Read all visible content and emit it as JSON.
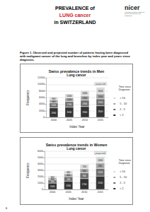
{
  "header": {
    "line1": "PREVALENCE of",
    "line2": "LUNG cancer",
    "line3": "in SWITZERLAND"
  },
  "logo": {
    "name": "nicer",
    "subtitle": "Foundation National Institute for Cancer Epidemiology and Registration"
  },
  "caption": "Figure 1. Observed and projected number of patients having been diagnosed with malignant cancer of the lung and bronchus by index year and years since diagnosis.",
  "page_number": "6",
  "chart_data": [
    {
      "type": "bar",
      "title": "Swiss prevalence trends in Men",
      "subtitle": "Lung cancer",
      "x_label": "Index Year",
      "y_label": "Frequency",
      "legend_title": "Time since Diagnosis",
      "categories": [
        "2000",
        "2005",
        "2010",
        "2015"
      ],
      "series": [
        {
          "name": "< 2",
          "color": "#333333",
          "values": [
            2900,
            3100,
            3300,
            3500
          ]
        },
        {
          "name": "2 - 5",
          "color": "#6f6f6f",
          "values": [
            1500,
            1700,
            1900,
            2100
          ]
        },
        {
          "name": "5 - 10",
          "color": "#a6a6a6",
          "values": [
            900,
            1100,
            1300,
            1500
          ]
        },
        {
          "name": "> 10",
          "color": "#d9d9d9",
          "values": [
            900,
            1200,
            1600,
            2000
          ]
        }
      ],
      "annotation": {
        "text": "projected",
        "category": "2015"
      },
      "ylim": [
        0,
        12000
      ],
      "yticks": [
        0,
        2000,
        4000,
        6000,
        8000,
        10000,
        12000
      ],
      "stacked": true,
      "data_labels": true,
      "grid": true,
      "legend": "right"
    },
    {
      "type": "bar",
      "title": "Swiss prevalence trends in Women",
      "subtitle": "Lung cancer",
      "x_label": "Index Year",
      "y_label": "Frequency",
      "legend_title": "Time since Diagnosis",
      "categories": [
        "2000",
        "2005",
        "2010",
        "2015"
      ],
      "series": [
        {
          "name": "< 2",
          "color": "#333333",
          "values": [
            1000,
            1300,
            1700,
            2100
          ]
        },
        {
          "name": "2 - 5",
          "color": "#6f6f6f",
          "values": [
            500,
            700,
            900,
            1200
          ]
        },
        {
          "name": "5 - 10",
          "color": "#a6a6a6",
          "values": [
            300,
            450,
            650,
            850
          ]
        },
        {
          "name": "> 10",
          "color": "#d9d9d9",
          "values": [
            300,
            450,
            700,
            1000
          ]
        }
      ],
      "annotation": {
        "text": "projected",
        "category": "2015"
      },
      "ylim": [
        0,
        6000
      ],
      "yticks": [
        0,
        1000,
        2000,
        3000,
        4000,
        5000,
        6000
      ],
      "stacked": true,
      "data_labels": true,
      "grid": true,
      "legend": "right"
    }
  ]
}
